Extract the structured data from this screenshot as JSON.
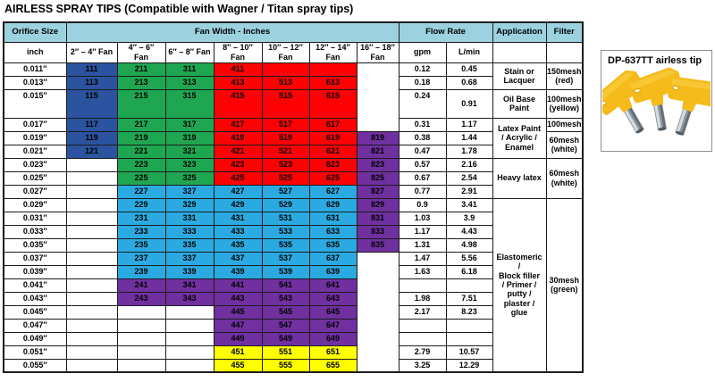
{
  "title": "AIRLESS SPRAY TIPS (Compatible with Wagner / Titan spray tips)",
  "colors": {
    "header": "#9CD2DF",
    "white": "#FFFFFF",
    "blue": "#2B539F",
    "green": "#1EA750",
    "red": "#FC0204",
    "lightblue": "#2BAAE2",
    "purple": "#7030A0",
    "yellow": "#FFFF00"
  },
  "table": {
    "header": {
      "orifice_label": "Orifice Size",
      "orifice_unit": "inch",
      "fan_group": "Fan Width - Inches",
      "fan_cols": [
        [
          "2″ – 4″ Fan"
        ],
        [
          "4″ – 6″",
          "Fan"
        ],
        [
          "6″ – 8″ Fan"
        ],
        [
          "8″ – 10″",
          "Fan"
        ],
        [
          "10″ – 12″",
          "Fan"
        ],
        [
          "12″ – 14″",
          "Fan"
        ],
        [
          "16″ – 18″",
          "Fan"
        ]
      ],
      "flow_group": "Flow Rate",
      "flow_cols": [
        "gpm",
        "L/min"
      ],
      "application_label": "Application",
      "filter_label": "Filter"
    },
    "rows": [
      {
        "orifice": "0.011″",
        "tall": false,
        "fans": [
          {
            "t": "111",
            "c": "blue"
          },
          {
            "t": "211",
            "c": "green"
          },
          {
            "t": "311",
            "c": "green"
          },
          {
            "t": "411",
            "c": "red"
          },
          {
            "t": "",
            "c": "red"
          },
          {
            "t": "",
            "c": "red"
          },
          {
            "merge": 4,
            "c": "white"
          }
        ],
        "gpm": "0.12",
        "lmin": "0.45",
        "app": {
          "rows": 2,
          "lines": [
            "Stain or",
            "Lacquer"
          ]
        },
        "filter": {
          "rows": 2,
          "lines": [
            "150mesh",
            "(red)"
          ]
        }
      },
      {
        "orifice": "0.013″",
        "tall": false,
        "fans": [
          {
            "t": "113",
            "c": "blue"
          },
          {
            "t": "213",
            "c": "green"
          },
          {
            "t": "313",
            "c": "green"
          },
          {
            "t": "413",
            "c": "red"
          },
          {
            "t": "513",
            "c": "red"
          },
          {
            "t": "613",
            "c": "red"
          },
          null
        ],
        "gpm": "0.18",
        "lmin": "0.68"
      },
      {
        "orifice": "0.015″",
        "tall": true,
        "fans": [
          {
            "t": "115",
            "c": "blue"
          },
          {
            "t": "215",
            "c": "green"
          },
          {
            "t": "315",
            "c": "green"
          },
          {
            "t": "415",
            "c": "red"
          },
          {
            "t": "515",
            "c": "red"
          },
          {
            "t": "615",
            "c": "red"
          },
          null
        ],
        "gpm": "0.24",
        "lmin": "0.91",
        "app": {
          "rows": 1,
          "lines": [
            "Oil Base",
            "Paint"
          ]
        },
        "filter": {
          "rows": 1,
          "lines": [
            "100mesh",
            "(yellow)"
          ]
        }
      },
      {
        "orifice": "0.017″",
        "tall": false,
        "fans": [
          {
            "t": "117",
            "c": "blue"
          },
          {
            "t": "217",
            "c": "green"
          },
          {
            "t": "317",
            "c": "green"
          },
          {
            "t": "417",
            "c": "red"
          },
          {
            "t": "517",
            "c": "red"
          },
          {
            "t": "617",
            "c": "red"
          },
          null
        ],
        "gpm": "0.31",
        "lmin": "1.17",
        "app": {
          "rows": 3,
          "lines": [
            "Latex Paint",
            "/ Acrylic /",
            "Enamel"
          ]
        },
        "filter": {
          "rows": 1,
          "lines": [
            "100mesh"
          ]
        }
      },
      {
        "orifice": "0.019″",
        "tall": false,
        "fans": [
          {
            "t": "119",
            "c": "blue"
          },
          {
            "t": "219",
            "c": "green"
          },
          {
            "t": "319",
            "c": "green"
          },
          {
            "t": "419",
            "c": "red"
          },
          {
            "t": "519",
            "c": "red"
          },
          {
            "t": "619",
            "c": "red"
          },
          {
            "t": "819",
            "c": "purple"
          }
        ],
        "gpm": "0.38",
        "lmin": "1.44",
        "filter": {
          "rows": 2,
          "lines": [
            "60mesh",
            "(white)"
          ]
        }
      },
      {
        "orifice": "0.021″",
        "tall": false,
        "fans": [
          {
            "t": "121",
            "c": "blue"
          },
          {
            "t": "221",
            "c": "green"
          },
          {
            "t": "321",
            "c": "green"
          },
          {
            "t": "421",
            "c": "red"
          },
          {
            "t": "521",
            "c": "red"
          },
          {
            "t": "621",
            "c": "red"
          },
          {
            "t": "821",
            "c": "purple"
          }
        ],
        "gpm": "0.47",
        "lmin": "1.78"
      },
      {
        "orifice": "0.023″",
        "tall": false,
        "fans": [
          {
            "t": "",
            "c": "white"
          },
          {
            "t": "223",
            "c": "green"
          },
          {
            "t": "323",
            "c": "green"
          },
          {
            "t": "423",
            "c": "red"
          },
          {
            "t": "523",
            "c": "red"
          },
          {
            "t": "623",
            "c": "red"
          },
          {
            "t": "823",
            "c": "purple"
          }
        ],
        "gpm": "0.57",
        "lmin": "2.16",
        "app": {
          "rows": 3,
          "lines": [
            "Heavy latex"
          ]
        },
        "filter": {
          "rows": 3,
          "lines": [
            "60mesh",
            "(white)"
          ]
        }
      },
      {
        "orifice": "0.025″",
        "tall": false,
        "fans": [
          {
            "t": "",
            "c": "white"
          },
          {
            "t": "225",
            "c": "green"
          },
          {
            "t": "325",
            "c": "green"
          },
          {
            "t": "425",
            "c": "red"
          },
          {
            "t": "525",
            "c": "red"
          },
          {
            "t": "625",
            "c": "red"
          },
          {
            "t": "825",
            "c": "purple"
          }
        ],
        "gpm": "0.67",
        "lmin": "2.54"
      },
      {
        "orifice": "0.027″",
        "tall": false,
        "fans": [
          {
            "t": "",
            "c": "white"
          },
          {
            "t": "227",
            "c": "lightblue"
          },
          {
            "t": "327",
            "c": "lightblue"
          },
          {
            "t": "427",
            "c": "lightblue"
          },
          {
            "t": "527",
            "c": "lightblue"
          },
          {
            "t": "627",
            "c": "lightblue"
          },
          {
            "t": "827",
            "c": "purple"
          }
        ],
        "gpm": "0.77",
        "lmin": "2.91"
      },
      {
        "orifice": "0.029″",
        "tall": false,
        "fans": [
          {
            "t": "",
            "c": "white"
          },
          {
            "t": "229",
            "c": "lightblue"
          },
          {
            "t": "329",
            "c": "lightblue"
          },
          {
            "t": "429",
            "c": "lightblue"
          },
          {
            "t": "529",
            "c": "lightblue"
          },
          {
            "t": "629",
            "c": "lightblue"
          },
          {
            "t": "829",
            "c": "purple"
          }
        ],
        "gpm": "0.9",
        "lmin": "3.41",
        "app": {
          "rows": 13,
          "lines": [
            "Elastomeric",
            "/",
            "Block filler",
            "/ Primer /",
            "putty /",
            "plaster /",
            "glue"
          ]
        },
        "filter": {
          "rows": 13,
          "lines": [
            "30mesh",
            "(green)"
          ]
        }
      },
      {
        "orifice": "0.031″",
        "tall": false,
        "fans": [
          {
            "t": "",
            "c": "white"
          },
          {
            "t": "231",
            "c": "lightblue"
          },
          {
            "t": "331",
            "c": "lightblue"
          },
          {
            "t": "431",
            "c": "lightblue"
          },
          {
            "t": "531",
            "c": "lightblue"
          },
          {
            "t": "631",
            "c": "lightblue"
          },
          {
            "t": "831",
            "c": "purple"
          }
        ],
        "gpm": "1.03",
        "lmin": "3.9"
      },
      {
        "orifice": "0.033″",
        "tall": false,
        "fans": [
          {
            "t": "",
            "c": "white"
          },
          {
            "t": "233",
            "c": "lightblue"
          },
          {
            "t": "333",
            "c": "lightblue"
          },
          {
            "t": "433",
            "c": "lightblue"
          },
          {
            "t": "533",
            "c": "lightblue"
          },
          {
            "t": "633",
            "c": "lightblue"
          },
          {
            "t": "833",
            "c": "purple"
          }
        ],
        "gpm": "1.17",
        "lmin": "4.43"
      },
      {
        "orifice": "0.035″",
        "tall": false,
        "fans": [
          {
            "t": "",
            "c": "white"
          },
          {
            "t": "235",
            "c": "lightblue"
          },
          {
            "t": "335",
            "c": "lightblue"
          },
          {
            "t": "435",
            "c": "lightblue"
          },
          {
            "t": "535",
            "c": "lightblue"
          },
          {
            "t": "635",
            "c": "lightblue"
          },
          {
            "t": "835",
            "c": "purple"
          }
        ],
        "gpm": "1.31",
        "lmin": "4.98"
      },
      {
        "orifice": "0.037″",
        "tall": false,
        "fans": [
          {
            "t": "",
            "c": "white"
          },
          {
            "t": "237",
            "c": "lightblue"
          },
          {
            "t": "337",
            "c": "lightblue"
          },
          {
            "t": "437",
            "c": "lightblue"
          },
          {
            "t": "537",
            "c": "lightblue"
          },
          {
            "t": "637",
            "c": "lightblue"
          },
          {
            "merge": 9,
            "c": "white"
          }
        ],
        "gpm": "1.47",
        "lmin": "5.56"
      },
      {
        "orifice": "0.039″",
        "tall": false,
        "fans": [
          {
            "t": "",
            "c": "white"
          },
          {
            "t": "239",
            "c": "lightblue"
          },
          {
            "t": "339",
            "c": "lightblue"
          },
          {
            "t": "439",
            "c": "lightblue"
          },
          {
            "t": "539",
            "c": "lightblue"
          },
          {
            "t": "639",
            "c": "lightblue"
          },
          null
        ],
        "gpm": "1.63",
        "lmin": "6.18"
      },
      {
        "orifice": "0.041″",
        "tall": false,
        "fans": [
          {
            "t": "",
            "c": "white"
          },
          {
            "t": "241",
            "c": "purple"
          },
          {
            "t": "341",
            "c": "purple"
          },
          {
            "t": "441",
            "c": "purple"
          },
          {
            "t": "541",
            "c": "purple"
          },
          {
            "t": "641",
            "c": "purple"
          },
          null
        ],
        "gpm": "",
        "lmin": ""
      },
      {
        "orifice": "0.043″",
        "tall": false,
        "fans": [
          {
            "t": "",
            "c": "white"
          },
          {
            "t": "243",
            "c": "purple"
          },
          {
            "t": "343",
            "c": "purple"
          },
          {
            "t": "443",
            "c": "purple"
          },
          {
            "t": "543",
            "c": "purple"
          },
          {
            "t": "643",
            "c": "purple"
          },
          null
        ],
        "gpm": "1.98",
        "lmin": "7.51"
      },
      {
        "orifice": "0.045″",
        "tall": false,
        "fans": [
          {
            "t": "",
            "c": "white"
          },
          {
            "t": "",
            "c": "white"
          },
          {
            "t": "",
            "c": "white"
          },
          {
            "t": "445",
            "c": "purple"
          },
          {
            "t": "545",
            "c": "purple"
          },
          {
            "t": "645",
            "c": "purple"
          },
          null
        ],
        "gpm": "2.17",
        "lmin": "8.23"
      },
      {
        "orifice": "0.047″",
        "tall": false,
        "fans": [
          {
            "t": "",
            "c": "white"
          },
          {
            "t": "",
            "c": "white"
          },
          {
            "t": "",
            "c": "white"
          },
          {
            "t": "447",
            "c": "purple"
          },
          {
            "t": "547",
            "c": "purple"
          },
          {
            "t": "647",
            "c": "purple"
          },
          null
        ],
        "gpm": "",
        "lmin": ""
      },
      {
        "orifice": "0.049″",
        "tall": false,
        "fans": [
          {
            "t": "",
            "c": "white"
          },
          {
            "t": "",
            "c": "white"
          },
          {
            "t": "",
            "c": "white"
          },
          {
            "t": "449",
            "c": "purple"
          },
          {
            "t": "549",
            "c": "purple"
          },
          {
            "t": "649",
            "c": "purple"
          },
          null
        ],
        "gpm": "",
        "lmin": ""
      },
      {
        "orifice": "0.051″",
        "tall": false,
        "fans": [
          {
            "t": "",
            "c": "white"
          },
          {
            "t": "",
            "c": "white"
          },
          {
            "t": "",
            "c": "white"
          },
          {
            "t": "451",
            "c": "yellow"
          },
          {
            "t": "551",
            "c": "yellow"
          },
          {
            "t": "651",
            "c": "yellow"
          },
          null
        ],
        "gpm": "2.79",
        "lmin": "10.57"
      },
      {
        "orifice": "0.055″",
        "tall": false,
        "fans": [
          {
            "t": "",
            "c": "white"
          },
          {
            "t": "",
            "c": "white"
          },
          {
            "t": "",
            "c": "white"
          },
          {
            "t": "455",
            "c": "yellow"
          },
          {
            "t": "555",
            "c": "yellow"
          },
          {
            "t": "655",
            "c": "yellow"
          },
          null
        ],
        "gpm": "3.25",
        "lmin": "12.29"
      }
    ]
  },
  "side_box": {
    "title": "DP-637TT airless tip",
    "tip_color": "#F4BB1B"
  }
}
